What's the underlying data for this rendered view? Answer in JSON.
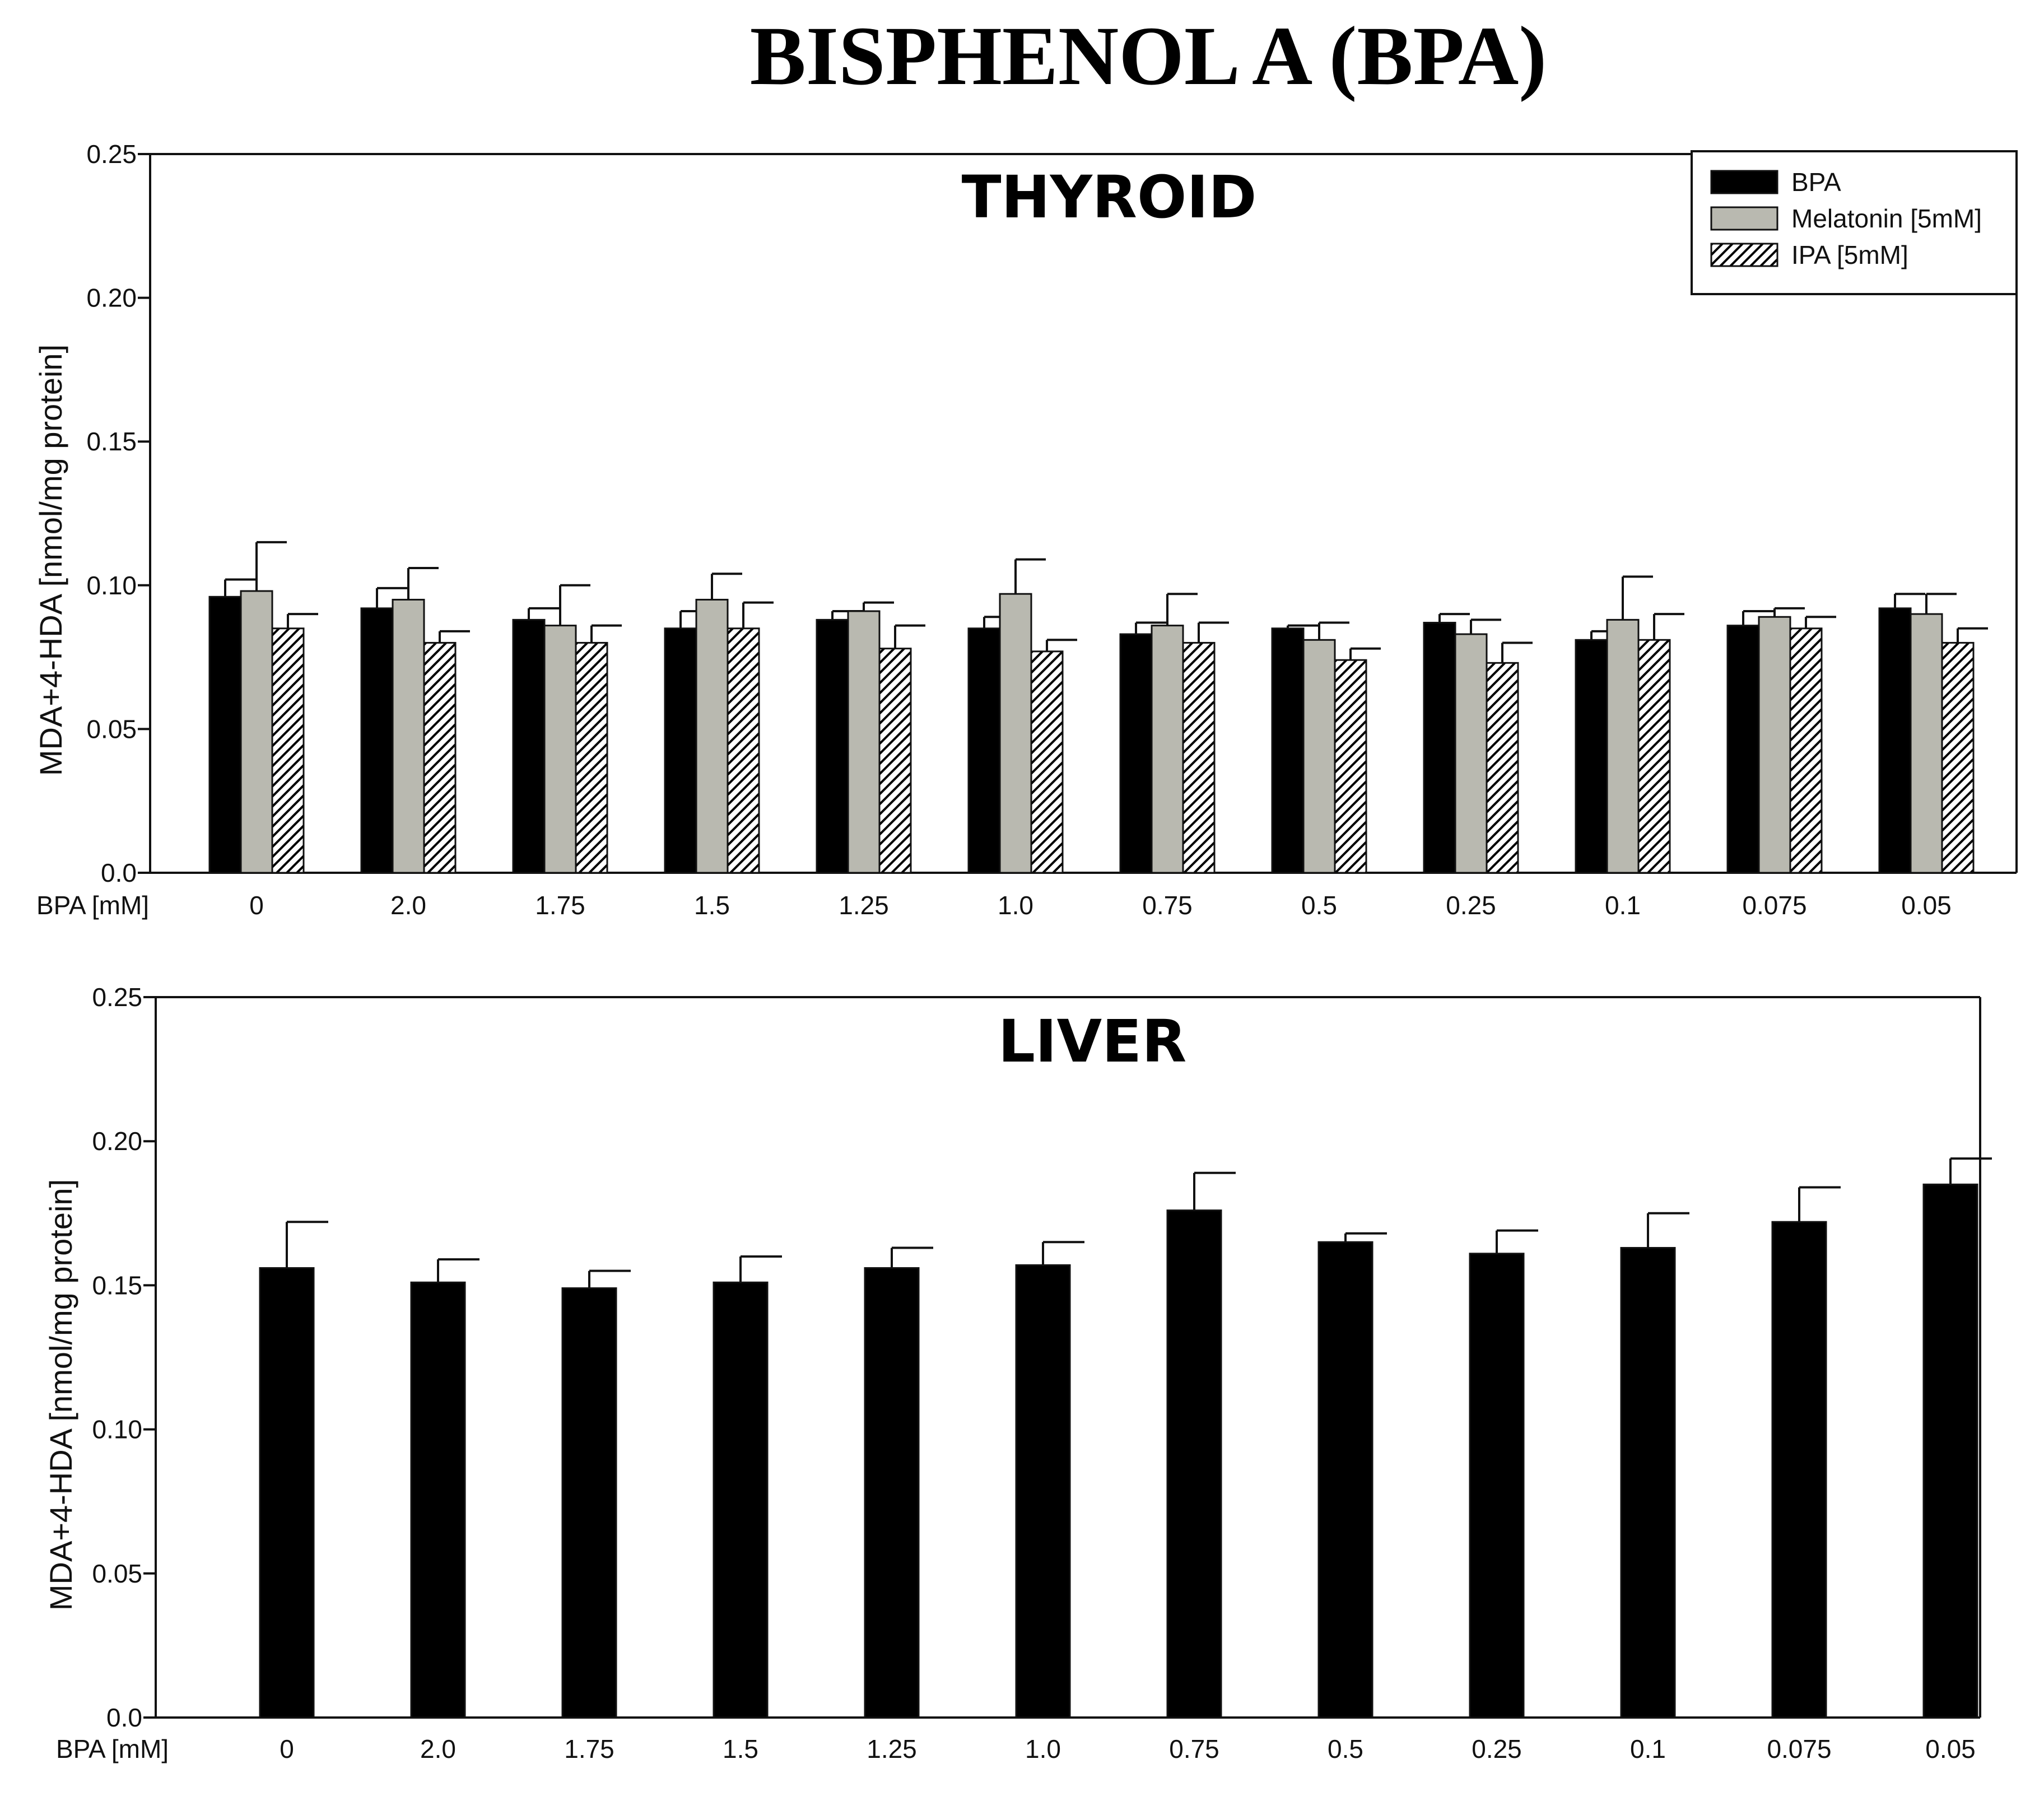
{
  "figure_title": "BISPHENOL A (BPA)",
  "chart_data": [
    {
      "type": "bar",
      "title": "THYROID",
      "xlabel": "BPA [mM]",
      "ylabel": "MDA+4-HDA [nmol/mg protein]",
      "ylim": [
        0,
        0.25
      ],
      "yticks": [
        "0.0",
        "0.05",
        "0.10",
        "0.15",
        "0.20",
        "0.25"
      ],
      "legend_position": "top-right",
      "categories": [
        "0",
        "2.0",
        "1.75",
        "1.5",
        "1.25",
        "1.0",
        "0.75",
        "0.5",
        "0.25",
        "0.1",
        "0.075",
        "0.05"
      ],
      "series": [
        {
          "name": "BPA",
          "fill": "solid",
          "color": "#000000",
          "values": [
            0.096,
            0.092,
            0.088,
            0.085,
            0.088,
            0.085,
            0.083,
            0.085,
            0.087,
            0.081,
            0.086,
            0.092
          ],
          "errors": [
            0.006,
            0.007,
            0.004,
            0.006,
            0.003,
            0.004,
            0.004,
            0.001,
            0.003,
            0.003,
            0.005,
            0.005
          ]
        },
        {
          "name": "Melatonin [5mM]",
          "fill": "solid",
          "color": "#b9b9b0",
          "values": [
            0.098,
            0.095,
            0.086,
            0.095,
            0.091,
            0.097,
            0.086,
            0.081,
            0.083,
            0.088,
            0.089,
            0.09
          ],
          "errors": [
            0.017,
            0.011,
            0.014,
            0.009,
            0.003,
            0.012,
            0.011,
            0.006,
            0.005,
            0.015,
            0.003,
            0.007
          ]
        },
        {
          "name": "IPA [5mM]",
          "fill": "hatch",
          "color": "#ffffff",
          "values": [
            0.085,
            0.08,
            0.08,
            0.085,
            0.078,
            0.077,
            0.08,
            0.074,
            0.073,
            0.081,
            0.085,
            0.08
          ],
          "errors": [
            0.005,
            0.004,
            0.006,
            0.009,
            0.008,
            0.004,
            0.007,
            0.004,
            0.007,
            0.009,
            0.004,
            0.005
          ]
        }
      ]
    },
    {
      "type": "bar",
      "title": "LIVER",
      "xlabel": "BPA [mM]",
      "ylabel": "MDA+4-HDA [nmol/mg protein]",
      "ylim": [
        0,
        0.25
      ],
      "yticks": [
        "0.0",
        "0.05",
        "0.10",
        "0.15",
        "0.20",
        "0.25"
      ],
      "categories": [
        "0",
        "2.0",
        "1.75",
        "1.5",
        "1.25",
        "1.0",
        "0.75",
        "0.5",
        "0.25",
        "0.1",
        "0.075",
        "0.05"
      ],
      "series": [
        {
          "name": "BPA",
          "fill": "solid",
          "color": "#000000",
          "values": [
            0.156,
            0.151,
            0.149,
            0.151,
            0.156,
            0.157,
            0.176,
            0.165,
            0.161,
            0.163,
            0.172,
            0.185
          ],
          "errors": [
            0.016,
            0.008,
            0.006,
            0.009,
            0.007,
            0.008,
            0.013,
            0.003,
            0.008,
            0.012,
            0.012,
            0.009
          ]
        }
      ]
    }
  ]
}
